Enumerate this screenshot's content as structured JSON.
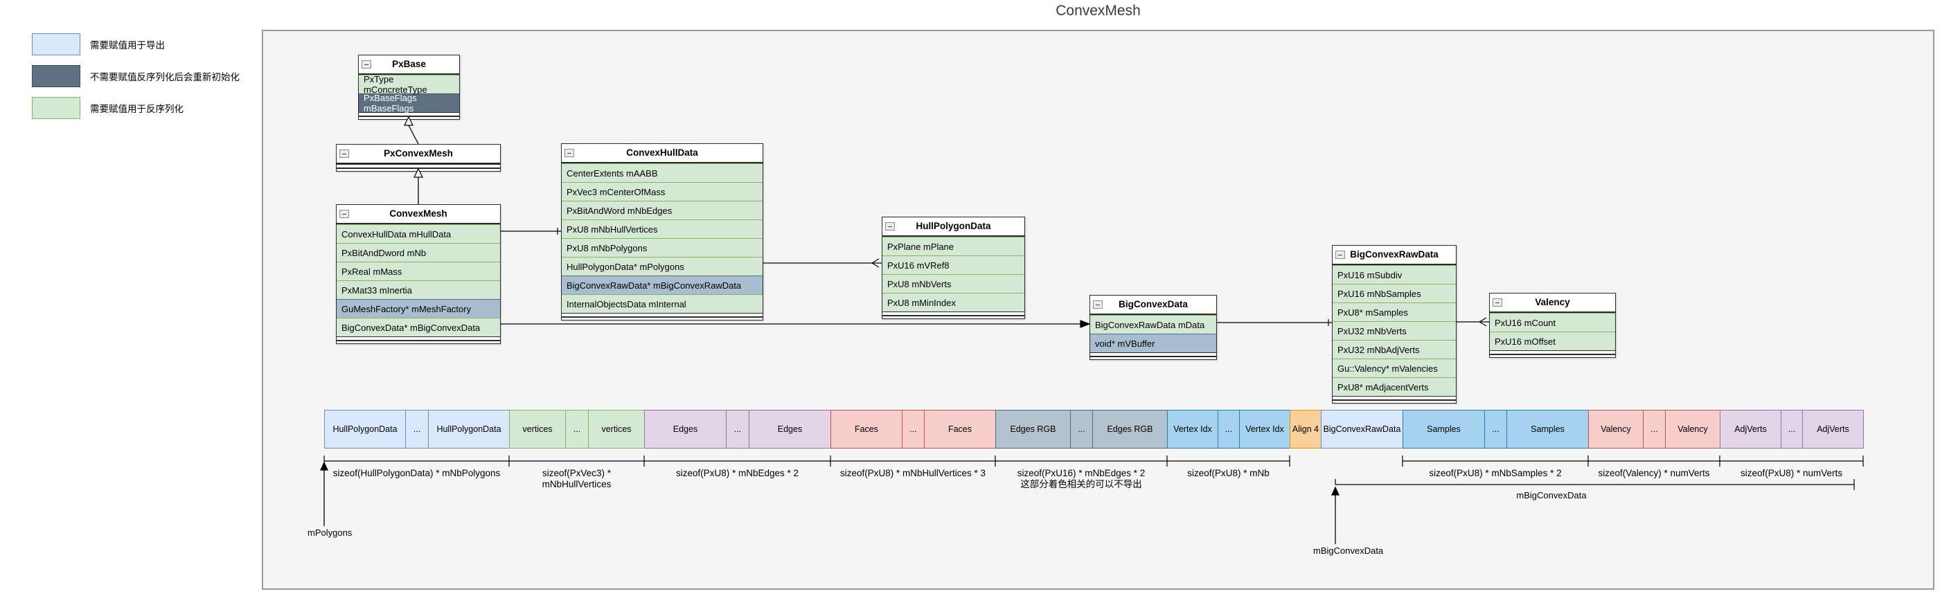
{
  "title": "ConvexMesh",
  "legend": {
    "items": [
      {
        "color_key": "blue",
        "label": "需要赋值用于导出"
      },
      {
        "color_key": "dark",
        "label": "不需要赋值反序列化后会重新初始化"
      },
      {
        "color_key": "green",
        "label": "需要赋值用于反序列化"
      }
    ]
  },
  "colors": {
    "blue": {
      "fill": "#dae8fc",
      "stroke": "#6c8ebf",
      "text": "#000000"
    },
    "green": {
      "fill": "#d5e8d4",
      "stroke": "#82b366",
      "text": "#000000"
    },
    "slate": {
      "fill": "#a9bdd0",
      "stroke": "#54718c",
      "text": "#000000"
    },
    "dark": {
      "fill": "#5d7081",
      "stroke": "#404f5e",
      "text": "#ffffff"
    },
    "purple": {
      "fill": "#e1d5e7",
      "stroke": "#9673a6",
      "text": "#000000"
    },
    "salmon": {
      "fill": "#f8cecc",
      "stroke": "#b85450",
      "text": "#000000"
    },
    "cyan": {
      "fill": "#a5d3ef",
      "stroke": "#2f7cab",
      "text": "#000000"
    },
    "orange": {
      "fill": "#f9d09b",
      "stroke": "#d79b00",
      "text": "#000000"
    },
    "slategray": {
      "fill": "#b4c2cd",
      "stroke": "#50697c",
      "text": "#000000"
    }
  },
  "classes": [
    {
      "id": "PxBase",
      "title": "PxBase",
      "fields": [
        {
          "text": "PxType mConcreteType",
          "kind": "green"
        },
        {
          "text": "PxBaseFlags mBaseFlags",
          "kind": "dark"
        }
      ]
    },
    {
      "id": "PxConvexMesh",
      "title": "PxConvexMesh",
      "fields": []
    },
    {
      "id": "ConvexMesh",
      "title": "ConvexMesh",
      "fields": [
        {
          "text": "ConvexHullData mHullData",
          "kind": "green"
        },
        {
          "text": "PxBitAndDword mNb",
          "kind": "green"
        },
        {
          "text": "PxReal mMass",
          "kind": "green"
        },
        {
          "text": "PxMat33 mInertia",
          "kind": "green"
        },
        {
          "text": "GuMeshFactory* mMeshFactory",
          "kind": "slate"
        },
        {
          "text": "BigConvexData* mBigConvexData",
          "kind": "green"
        }
      ]
    },
    {
      "id": "ConvexHullData",
      "title": "ConvexHullData",
      "fields": [
        {
          "text": "CenterExtents mAABB",
          "kind": "green"
        },
        {
          "text": "PxVec3 mCenterOfMass",
          "kind": "green"
        },
        {
          "text": "PxBitAndWord mNbEdges",
          "kind": "green"
        },
        {
          "text": "PxU8 mNbHullVertices",
          "kind": "green"
        },
        {
          "text": "PxU8 mNbPolygons",
          "kind": "green"
        },
        {
          "text": "HullPolygonData* mPolygons",
          "kind": "green"
        },
        {
          "text": "BigConvexRawData* mBigConvexRawData",
          "kind": "slate"
        },
        {
          "text": "InternalObjectsData mInternal",
          "kind": "green"
        }
      ]
    },
    {
      "id": "HullPolygonData",
      "title": "HullPolygonData",
      "fields": [
        {
          "text": "PxPlane mPlane",
          "kind": "green"
        },
        {
          "text": "PxU16 mVRef8",
          "kind": "green"
        },
        {
          "text": "PxU8 mNbVerts",
          "kind": "green"
        },
        {
          "text": "PxU8 mMinIndex",
          "kind": "green"
        }
      ]
    },
    {
      "id": "BigConvexData",
      "title": "BigConvexData",
      "fields": [
        {
          "text": "BigConvexRawData mData",
          "kind": "green"
        },
        {
          "text": "void* mVBuffer",
          "kind": "slate"
        }
      ]
    },
    {
      "id": "BigConvexRawData",
      "title": "BigConvexRawData",
      "fields": [
        {
          "text": "PxU16 mSubdiv",
          "kind": "green"
        },
        {
          "text": "PxU16 mNbSamples",
          "kind": "green"
        },
        {
          "text": "PxU8* mSamples",
          "kind": "green"
        },
        {
          "text": "PxU32 mNbVerts",
          "kind": "green"
        },
        {
          "text": "PxU32 mNbAdjVerts",
          "kind": "green"
        },
        {
          "text": "Gu::Valency* mValencies",
          "kind": "green"
        },
        {
          "text": "PxU8* mAdjacentVerts",
          "kind": "green"
        }
      ]
    },
    {
      "id": "Valency",
      "title": "Valency",
      "fields": [
        {
          "text": "PxU16 mCount",
          "kind": "green"
        },
        {
          "text": "PxU16 mOffset",
          "kind": "green"
        }
      ]
    }
  ],
  "relations": [
    {
      "from": "PxConvexMesh",
      "to": "PxBase",
      "kind": "inheritance"
    },
    {
      "from": "ConvexMesh",
      "to": "PxConvexMesh",
      "kind": "inheritance"
    },
    {
      "from": "ConvexMesh.mHullData",
      "to": "ConvexHullData",
      "kind": "association"
    },
    {
      "from": "ConvexHullData.mPolygons",
      "to": "HullPolygonData",
      "kind": "pointer"
    },
    {
      "from": "ConvexMesh.mBigConvexData",
      "to": "BigConvexData",
      "kind": "pointer"
    },
    {
      "from": "BigConvexData.mData",
      "to": "BigConvexRawData",
      "kind": "association"
    },
    {
      "from": "BigConvexRawData.mValencies",
      "to": "Valency",
      "kind": "pointer"
    }
  ],
  "strip": {
    "groups": [
      {
        "id": "hullpoly",
        "color": "blue",
        "cells": [
          "HullPolygonData",
          "...",
          "HullPolygonData"
        ]
      },
      {
        "id": "vertices",
        "color": "green",
        "cells": [
          "vertices",
          "...",
          "vertices"
        ]
      },
      {
        "id": "edges",
        "color": "purple",
        "cells": [
          "Edges",
          "...",
          "Edges"
        ]
      },
      {
        "id": "faces",
        "color": "salmon",
        "cells": [
          "Faces",
          "...",
          "Faces"
        ]
      },
      {
        "id": "edgesrgb",
        "color": "slategray",
        "cells": [
          "Edges RGB",
          "...",
          "Edges RGB"
        ]
      },
      {
        "id": "vertexidx",
        "color": "cyan",
        "cells": [
          "Vertex Idx",
          "...",
          "Vertex Idx"
        ]
      },
      {
        "id": "align4",
        "color": "orange",
        "cells": [
          "Align 4"
        ]
      },
      {
        "id": "bigraw",
        "color": "blue",
        "cells": [
          "BigConvexRawData"
        ]
      },
      {
        "id": "samples",
        "color": "cyan",
        "cells": [
          "Samples",
          "...",
          "Samples"
        ]
      },
      {
        "id": "valency",
        "color": "salmon",
        "cells": [
          "Valency",
          "...",
          "Valency"
        ]
      },
      {
        "id": "adjverts",
        "color": "purple",
        "cells": [
          "AdjVerts",
          "...",
          "AdjVerts"
        ]
      }
    ]
  },
  "size_labels": [
    {
      "text": "sizeof(HullPolygonData) *  mNbPolygons"
    },
    {
      "text": "sizeof(PxVec3) *  mNbHullVertices"
    },
    {
      "text": "sizeof(PxU8) *  mNbEdges * 2"
    },
    {
      "text": "sizeof(PxU8) *  mNbHullVertices * 3"
    },
    {
      "text": "sizeof(PxU16) *  mNbEdges  * 2",
      "note": "这部分着色相关的可以不导出"
    },
    {
      "text": "sizeof(PxU8) *  mNb"
    },
    {
      "text": "sizeof(PxU8) *  mNbSamples * 2"
    },
    {
      "text": "sizeof(Valency) *  numVerts"
    },
    {
      "text": "sizeof(PxU8) *  numVerts"
    }
  ],
  "pointer_labels": {
    "polygons_arrow": "mPolygons",
    "big_convex_arrow": "mBigConvexData",
    "big_convex_bracket": "mBigConvexData"
  }
}
